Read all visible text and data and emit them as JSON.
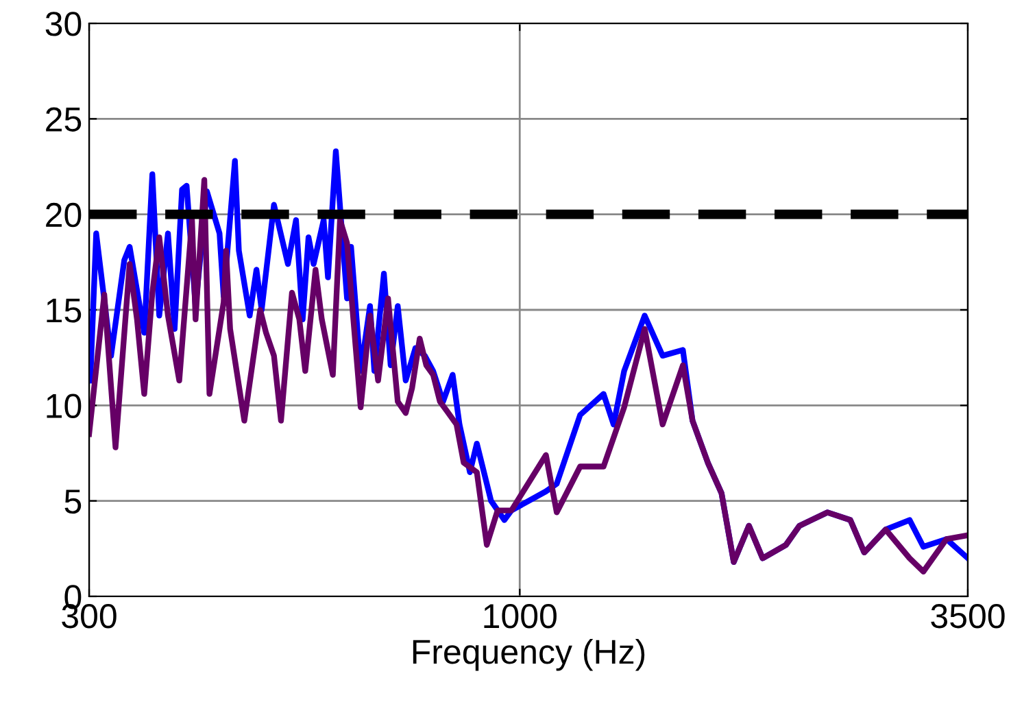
{
  "chart_data": {
    "type": "line",
    "xlabel": "Frequency (Hz)",
    "log": "x",
    "xlim": [
      300,
      3500
    ],
    "ylim": [
      0,
      30
    ],
    "xticks": [
      300,
      1000,
      3500
    ],
    "yticks": [
      0,
      5,
      10,
      15,
      20,
      25,
      30
    ],
    "grid": true,
    "marker": "none",
    "line_style": "solid",
    "ref_lines": [
      {
        "axis": "y",
        "value": 20,
        "color": "#000000",
        "line_style": "dashed"
      }
    ],
    "series": [
      {
        "color": "#0000ff",
        "x": [
          301,
          306,
          319,
          331,
          336,
          350,
          358,
          365,
          374,
          381,
          389,
          394,
          404,
          417,
          432,
          437,
          451,
          456,
          470,
          479,
          486,
          503,
          523,
          535,
          545,
          554,
          562,
          578,
          585,
          598,
          617,
          624,
          641,
          658,
          666,
          684,
          697,
          711,
          727,
          747,
          767,
          785,
          807,
          829,
          845,
          870,
          887,
          923,
          958,
          977,
          1076,
          1109,
          1184,
          1264,
          1300,
          1339,
          1418,
          1491,
          1578,
          1621,
          1692,
          1758,
          1819,
          1898,
          1972,
          2105,
          2186,
          2363,
          2520,
          2620,
          2782,
          2974,
          3091,
          3297,
          3500
        ],
        "values": [
          11.3,
          19,
          12.6,
          17.6,
          18.3,
          13.8,
          22.1,
          14.7,
          19,
          14,
          21.3,
          21.5,
          15.2,
          21.2,
          19,
          15.7,
          22.8,
          18.1,
          14.7,
          17.1,
          15,
          20.5,
          17.4,
          19.7,
          14.5,
          18.8,
          17.4,
          19.7,
          16.7,
          23.3,
          15.6,
          18.3,
          11.8,
          15.2,
          11.8,
          16.9,
          12.1,
          15.2,
          11.3,
          13,
          12.6,
          11.8,
          10.2,
          11.6,
          9,
          6.5,
          8,
          5,
          4,
          4.5,
          5.5,
          5.9,
          9.5,
          10.6,
          9,
          11.8,
          14.7,
          12.6,
          12.9,
          9.2,
          7,
          5.4,
          1.8,
          3.7,
          2,
          2.7,
          3.7,
          4.4,
          4,
          2.3,
          3.5,
          4,
          2.6,
          3,
          2
        ]
      },
      {
        "color": "#660066",
        "x": [
          300,
          313,
          323,
          336,
          343,
          350,
          358,
          365,
          374,
          386,
          400,
          404,
          414,
          420,
          437,
          440,
          445,
          463,
          484,
          492,
          503,
          513,
          529,
          540,
          549,
          565,
          575,
          593,
          605,
          617,
          641,
          658,
          673,
          692,
          711,
          727,
          740,
          756,
          770,
          785,
          800,
          816,
          838,
          855,
          887,
          912,
          940,
          977,
          1076,
          1109,
          1184,
          1264,
          1339,
          1418,
          1491,
          1578,
          1621,
          1692,
          1758,
          1819,
          1898,
          1972,
          2105,
          2186,
          2363,
          2520,
          2620,
          2782,
          2974,
          3091,
          3297,
          3500
        ],
        "values": [
          8.5,
          15.8,
          7.8,
          17.4,
          14.5,
          10.6,
          15.9,
          18.8,
          14.7,
          11.3,
          19.7,
          14.5,
          21.8,
          10.6,
          15.4,
          18.1,
          14,
          9.2,
          15,
          13.8,
          12.6,
          9.2,
          15.9,
          14.5,
          11.8,
          17.1,
          14.5,
          11.6,
          19.7,
          18.5,
          9.9,
          14.7,
          11.3,
          15.6,
          10.2,
          9.6,
          10.9,
          13.5,
          12.1,
          11.6,
          10.2,
          9.7,
          9,
          7,
          6.5,
          2.7,
          4.5,
          4.5,
          7.4,
          4.4,
          6.8,
          6.8,
          9.9,
          14,
          9,
          12.1,
          9.2,
          7,
          5.4,
          1.8,
          3.7,
          2,
          2.7,
          3.7,
          4.4,
          4,
          2.3,
          3.5,
          2,
          1.3,
          3,
          3.2
        ]
      }
    ]
  }
}
